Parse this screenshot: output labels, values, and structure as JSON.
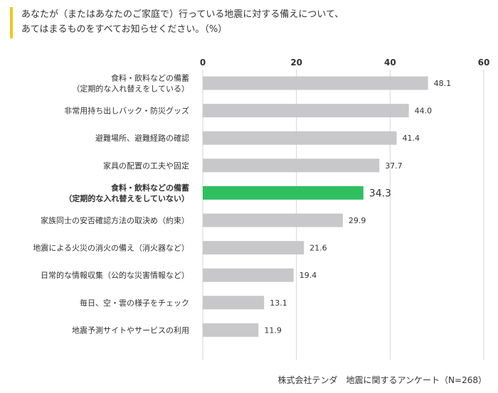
{
  "question": {
    "line1": "あなたが（またはあなたのご家庭で）行っている地震に対する備えについて、",
    "line2": "あてはまるものをすべてお知らせください。（%）"
  },
  "source": "株式会社テンダ　地震に関するアンケート（N=268）",
  "colors": {
    "accent_bar": "#f5c518",
    "bar_default": "#c8c8ca",
    "bar_highlight": "#2fbf5f",
    "grid": "#d6d6d6",
    "axis_text": "#333333"
  },
  "chart_data": {
    "type": "bar",
    "orientation": "horizontal",
    "xlim": [
      0,
      60
    ],
    "ticks": [
      0,
      20,
      40,
      60
    ],
    "grid": true,
    "categories": [
      [
        "食料・飲料などの備蓄",
        "（定期的な入れ替えをしている）"
      ],
      [
        "非常用持ち出しバック・防災グッズ"
      ],
      [
        "避難場所、避難経路の確認"
      ],
      [
        "家具の配置の工夫や固定"
      ],
      [
        "食料・飲料などの備蓄",
        "（定期的な入れ替えをしていない）"
      ],
      [
        "家族同士の安否確認方法の取決め（約束）"
      ],
      [
        "地震による火災の消火の備え（消火器など）"
      ],
      [
        "日常的な情報収集（公的な災害情報など）"
      ],
      [
        "毎日、空・雲の様子をチェック"
      ],
      [
        "地震予測サイトやサービスの利用"
      ]
    ],
    "values": [
      48.1,
      44.0,
      41.4,
      37.7,
      34.3,
      29.9,
      21.6,
      19.4,
      13.1,
      11.9
    ],
    "labels": [
      "48.1",
      "44.0",
      "41.4",
      "37.7",
      "34.3",
      "29.9",
      "21.6",
      "19.4",
      "13.1",
      "11.9"
    ],
    "highlight_index": 4
  }
}
